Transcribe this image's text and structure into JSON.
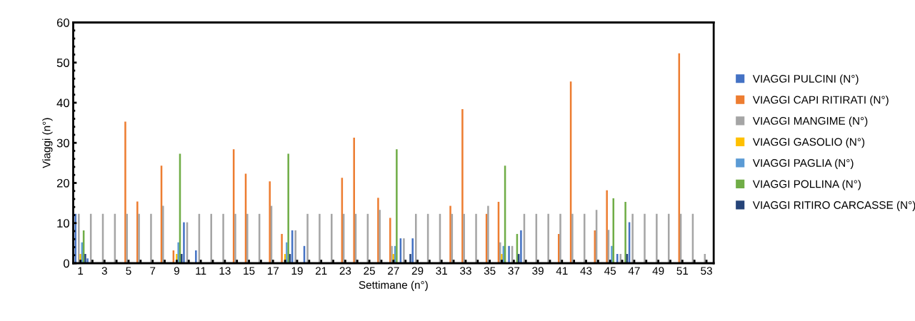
{
  "chart_data": {
    "type": "bar",
    "xlabel": "Settimane (n°)",
    "ylabel": "Viaggi (n°)",
    "categories": [
      "1",
      null,
      "3",
      null,
      "5",
      null,
      "7",
      null,
      "9",
      null,
      "11",
      null,
      "13",
      null,
      "15",
      null,
      "17",
      null,
      "19",
      null,
      "21",
      null,
      "23",
      null,
      "25",
      null,
      "27",
      null,
      "29",
      null,
      "31",
      null,
      "33",
      null,
      "35",
      null,
      "37",
      null,
      "39",
      null,
      "41",
      null,
      "43",
      null,
      "45",
      null,
      "47",
      null,
      "49",
      null,
      "51",
      null,
      "53"
    ],
    "ylim": [
      0,
      60
    ],
    "yticks": [
      0,
      10,
      20,
      30,
      40,
      50,
      60
    ],
    "grid": false,
    "legend": "right",
    "series": [
      {
        "name": "VIAGGI PULCINI (N°)",
        "color": "#4472c4",
        "values": [
          12.3,
          1.2,
          0,
          0,
          0,
          0,
          0,
          0,
          0,
          10.2,
          3.2,
          0,
          0,
          0,
          0,
          0,
          0,
          0,
          8.2,
          4.3,
          0,
          0,
          0,
          0,
          0,
          0,
          0,
          6.2,
          6.2,
          0,
          0,
          0,
          0,
          0,
          0,
          0,
          4.3,
          8.2,
          0,
          0,
          0,
          0,
          0,
          0,
          0,
          2.3,
          10.2,
          0,
          0,
          0,
          0,
          0,
          0
        ]
      },
      {
        "name": "VIAGGI CAPI RITIRATI (N°)",
        "color": "#ed7d31",
        "values": [
          0,
          0,
          0,
          0,
          35.3,
          15.4,
          0,
          24.3,
          3.2,
          0,
          0,
          0,
          0,
          28.4,
          22.3,
          0,
          20.4,
          7.3,
          0,
          0,
          0,
          0,
          21.3,
          31.3,
          0,
          16.3,
          11.3,
          0,
          0,
          0,
          0,
          14.3,
          38.4,
          0,
          12.3,
          15.3,
          0,
          0,
          0,
          0,
          7.3,
          45.3,
          0,
          8.2,
          18.2,
          0,
          0,
          0,
          0,
          0,
          52.3,
          0,
          0
        ]
      },
      {
        "name": "VIAGGI MANGIME (N°)",
        "color": "#a5a5a5",
        "values": [
          12.3,
          12.3,
          12.3,
          12.3,
          12.3,
          12.3,
          12.3,
          14.3,
          null,
          10.2,
          12.3,
          12.3,
          12.3,
          12.3,
          12.3,
          12.3,
          14.3,
          null,
          8.2,
          12.3,
          12.3,
          12.3,
          12.3,
          12.3,
          12.3,
          13.3,
          4.3,
          6.2,
          12.3,
          12.3,
          12.3,
          12.3,
          12.3,
          12.3,
          14.3,
          5.2,
          4.3,
          12.3,
          12.3,
          12.3,
          12.3,
          12.3,
          12.3,
          13.3,
          8.3,
          2.3,
          12.3,
          12.3,
          12.3,
          12.3,
          12.3,
          12.3,
          2.3
        ]
      },
      {
        "name": "VIAGGI GASOLIO (N°)",
        "color": "#ffc000",
        "values": [
          2.3,
          0,
          0,
          0,
          0,
          0,
          0,
          0,
          2.3,
          0,
          0,
          0,
          0,
          0,
          0,
          0,
          0,
          2.3,
          0,
          0,
          0,
          0,
          0,
          0,
          0,
          0,
          2.3,
          0,
          0,
          0,
          0,
          0,
          0,
          0,
          0,
          2.3,
          0,
          0,
          0,
          0,
          0,
          0,
          0,
          0,
          0,
          0,
          0,
          0,
          0,
          0,
          0,
          0,
          0
        ]
      },
      {
        "name": "VIAGGI PAGLIA (N°)",
        "color": "#5b9bd5",
        "values": [
          5.2,
          0,
          0,
          0,
          0,
          0,
          0,
          0,
          5.2,
          0,
          0,
          0,
          0,
          0,
          0,
          0,
          0,
          5.2,
          0,
          0,
          0,
          0,
          0,
          0,
          0,
          0,
          4.3,
          0,
          0,
          0,
          0,
          0,
          0,
          0,
          0,
          4.3,
          0,
          0,
          0,
          0,
          0,
          0,
          0,
          0,
          4.3,
          0,
          0,
          0,
          0,
          0,
          0,
          0,
          0
        ]
      },
      {
        "name": "VIAGGI POLLINA (N°)",
        "color": "#70ad47",
        "values": [
          8.2,
          0,
          0,
          0,
          0,
          0,
          0,
          0,
          27.3,
          0,
          0,
          0,
          0,
          0,
          0,
          0,
          0,
          27.3,
          0,
          0,
          0,
          0,
          0,
          0,
          0,
          0,
          28.4,
          0,
          0,
          0,
          0,
          0,
          0,
          0,
          0,
          24.3,
          7.3,
          0,
          0,
          0,
          0,
          0,
          0,
          0,
          16.2,
          15.3,
          0,
          0,
          0,
          0,
          0,
          0,
          0
        ]
      },
      {
        "name": "VIAGGI RITIRO CARCASSE (N°)",
        "color": "#264478",
        "values": [
          2.3,
          0,
          0,
          0,
          0,
          0,
          0,
          0,
          2.3,
          0,
          0,
          0,
          0,
          0,
          0,
          0,
          0,
          2.3,
          0,
          0,
          0,
          0,
          0,
          0,
          0,
          0,
          0,
          2.3,
          0,
          0,
          0,
          0,
          0,
          0,
          0,
          0,
          2.3,
          0,
          0,
          0,
          0,
          0,
          0,
          0,
          0,
          2.3,
          0,
          0,
          0,
          0,
          0,
          0,
          0
        ]
      }
    ]
  }
}
